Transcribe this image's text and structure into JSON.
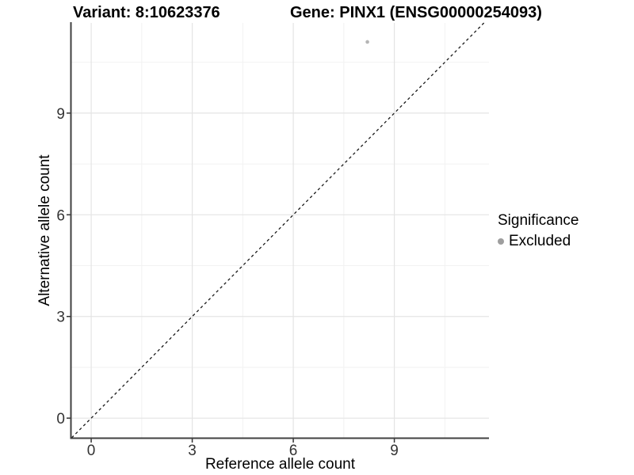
{
  "header": {
    "title_variant": "Variant: 8:10623376",
    "title_gene": "Gene: PINX1 (ENSG00000254093)"
  },
  "legend": {
    "title": "Significance",
    "entries": [
      {
        "label": "Excluded",
        "color": "#9e9e9e"
      }
    ]
  },
  "chart_data": {
    "type": "scatter",
    "titles": [
      "Variant: 8:10623376",
      "Gene: PINX1 (ENSG00000254093)"
    ],
    "xlabel": "Reference allele count",
    "ylabel": "Alternative allele count",
    "xticks": [
      0,
      3,
      6,
      9
    ],
    "yticks": [
      0,
      3,
      6,
      9
    ],
    "xticks_minor": [
      1.5,
      4.5,
      7.5,
      10.5
    ],
    "yticks_minor": [
      1.5,
      4.5,
      7.5,
      10.5
    ],
    "xlim": [
      -0.59,
      11.81
    ],
    "ylim": [
      -0.58,
      11.66
    ],
    "grid": "major+minor",
    "legend_position": "right",
    "legend_title": "Significance",
    "series": [
      {
        "name": "Excluded",
        "color": "#b5b5b5",
        "marker": "circle",
        "marker_radius": 2.3,
        "points": [
          {
            "x": 8.2,
            "y": 11.1
          }
        ]
      }
    ],
    "reference_line": {
      "slope": 1,
      "intercept": 0,
      "style": "dashed",
      "color": "#1a1a1a"
    }
  },
  "colors": {
    "background": "#ffffff",
    "grid_major": "#e4e4e4",
    "grid_minor": "#f2f2f2",
    "axis_line": "#404040",
    "tick_mark": "#333333",
    "tick_label": "#333333",
    "text": "#000000"
  }
}
